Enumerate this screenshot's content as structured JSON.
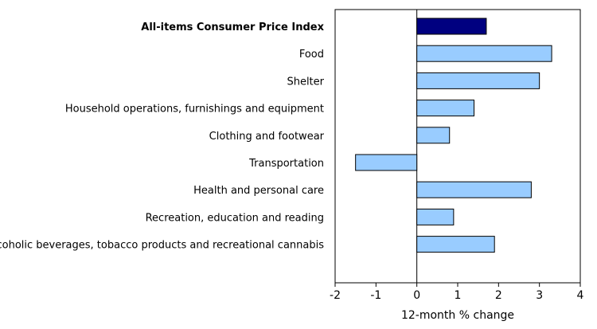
{
  "chart_data": {
    "type": "bar",
    "orientation": "horizontal",
    "categories": [
      "All-items Consumer Price Index",
      "Food",
      "Shelter",
      "Household operations, furnishings and equipment",
      "Clothing and footwear",
      "Transportation",
      "Health and personal care",
      "Recreation, education and reading",
      "Alcoholic beverages, tobacco products and recreational cannabis"
    ],
    "values": [
      1.7,
      3.3,
      3.0,
      1.4,
      0.8,
      -1.5,
      2.8,
      0.9,
      1.9
    ],
    "highlight_index": 0,
    "xlabel": "12-month % change",
    "xlim": [
      -2,
      4
    ],
    "xticks": [
      -2,
      -1,
      0,
      1,
      2,
      3,
      4
    ],
    "grid": false,
    "colors": {
      "highlight": "#000080",
      "bar": "#99ccff",
      "bar_stroke": "#000000"
    }
  }
}
